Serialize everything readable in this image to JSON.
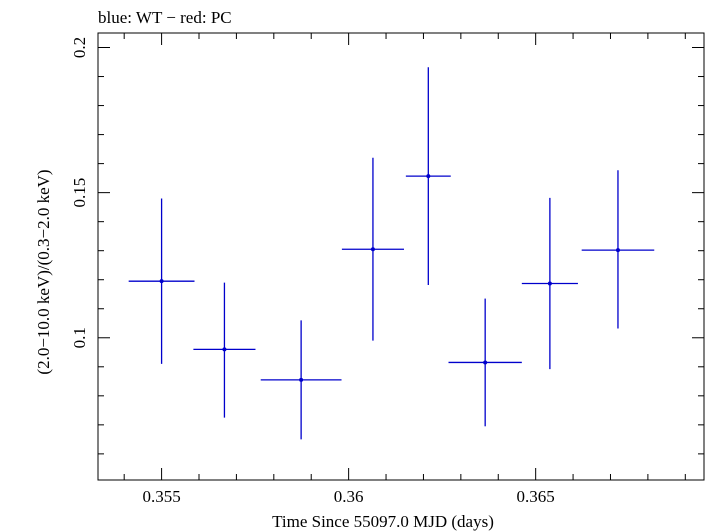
{
  "chart_data": {
    "type": "scatter",
    "title": "blue: WT − red: PC",
    "xlabel": "Time Since 55097.0 MJD (days)",
    "ylabel": "(2.0−10.0 keV)/(0.3−2.0 keV)",
    "xlim": [
      0.3533,
      0.3695
    ],
    "ylim": [
      0.051,
      0.205
    ],
    "x_ticks": [
      {
        "value": 0.355,
        "label": "0.355"
      },
      {
        "value": 0.36,
        "label": "0.36"
      },
      {
        "value": 0.365,
        "label": "0.365"
      }
    ],
    "y_ticks": [
      {
        "value": 0.1,
        "label": "0.1"
      },
      {
        "value": 0.15,
        "label": "0.15"
      },
      {
        "value": 0.2,
        "label": "0.2"
      }
    ],
    "grid": false,
    "series": [
      {
        "color": "#0000cc",
        "points": [
          {
            "x": 0.355,
            "y": 0.1195,
            "xerr": 0.00088,
            "yerr_low": 0.0285,
            "yerr_high": 0.0285
          },
          {
            "x": 0.35668,
            "y": 0.096,
            "xerr": 0.00083,
            "yerr_low": 0.0235,
            "yerr_high": 0.023
          },
          {
            "x": 0.35873,
            "y": 0.0855,
            "xerr": 0.00108,
            "yerr_low": 0.0205,
            "yerr_high": 0.0205
          },
          {
            "x": 0.36065,
            "y": 0.1305,
            "xerr": 0.00083,
            "yerr_low": 0.0315,
            "yerr_high": 0.0315
          },
          {
            "x": 0.36213,
            "y": 0.1557,
            "xerr": 0.0006,
            "yerr_low": 0.0375,
            "yerr_high": 0.0375
          },
          {
            "x": 0.36365,
            "y": 0.0915,
            "xerr": 0.00098,
            "yerr_low": 0.022,
            "yerr_high": 0.022
          },
          {
            "x": 0.36538,
            "y": 0.1187,
            "xerr": 0.00075,
            "yerr_low": 0.0295,
            "yerr_high": 0.0295
          },
          {
            "x": 0.3672,
            "y": 0.1302,
            "xerr": 0.00097,
            "yerr_low": 0.027,
            "yerr_high": 0.0275
          }
        ]
      }
    ]
  }
}
